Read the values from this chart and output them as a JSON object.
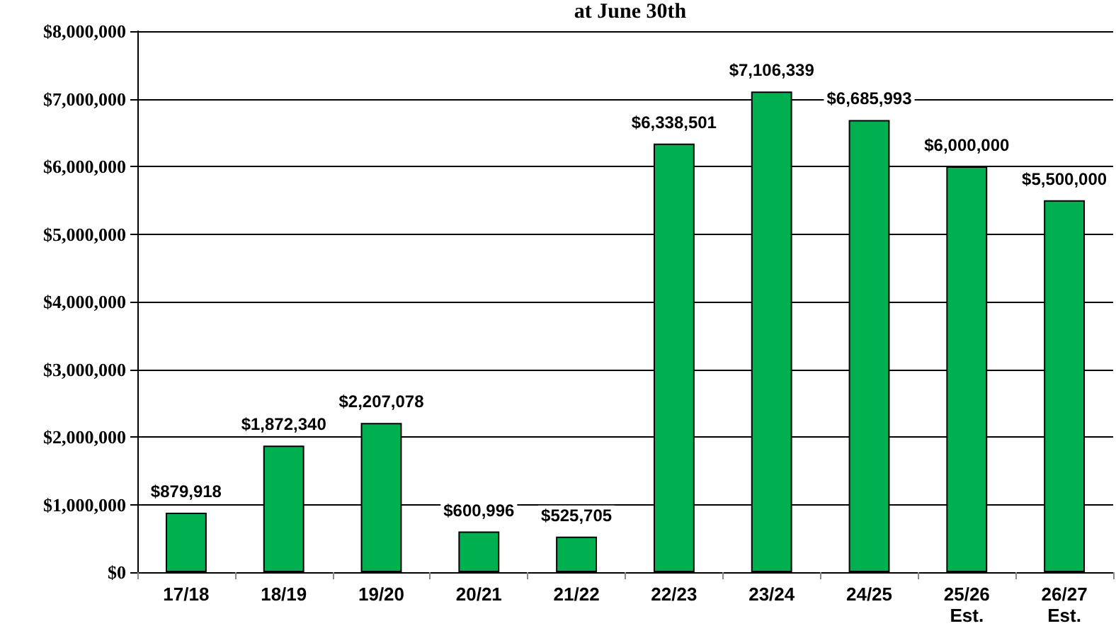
{
  "chart_data": {
    "type": "bar",
    "title": "at June 30th",
    "categories": [
      "17/18",
      "18/19",
      "19/20",
      "20/21",
      "21/22",
      "22/23",
      "23/24",
      "24/25",
      "25/26\nEst.",
      "26/27\nEst."
    ],
    "values": [
      879918,
      1872340,
      2207078,
      600996,
      525705,
      6338501,
      7106339,
      6685993,
      6000000,
      5500000
    ],
    "value_labels": [
      "$879,918",
      "$1,872,340",
      "$2,207,078",
      "$600,996",
      "$525,705",
      "$6,338,501",
      "$7,106,339",
      "$6,685,993",
      "$6,000,000",
      "$5,500,000"
    ],
    "color": "#00b050",
    "ylim": [
      0,
      8000000
    ],
    "yticks": [
      {
        "value": 0,
        "label": "$0"
      },
      {
        "value": 1000000,
        "label": "$1,000,000"
      },
      {
        "value": 2000000,
        "label": "$2,000,000"
      },
      {
        "value": 3000000,
        "label": "$3,000,000"
      },
      {
        "value": 4000000,
        "label": "$4,000,000"
      },
      {
        "value": 5000000,
        "label": "$5,000,000"
      },
      {
        "value": 6000000,
        "label": "$6,000,000"
      },
      {
        "value": 7000000,
        "label": "$7,000,000"
      },
      {
        "value": 8000000,
        "label": "$8,000,000"
      }
    ],
    "grid": "y"
  }
}
